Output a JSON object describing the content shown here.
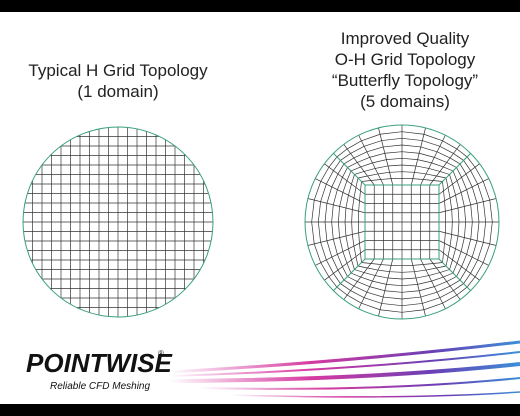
{
  "left_title": [
    "Typical H Grid Topology",
    "(1 domain)"
  ],
  "right_title": [
    "Improved Quality",
    "O-H Grid Topology",
    "“Butterfly Topology”",
    "(5 domains)"
  ],
  "logo": {
    "name": "POINTWISE",
    "mark": "®",
    "tagline": "Reliable CFD Meshing"
  }
}
